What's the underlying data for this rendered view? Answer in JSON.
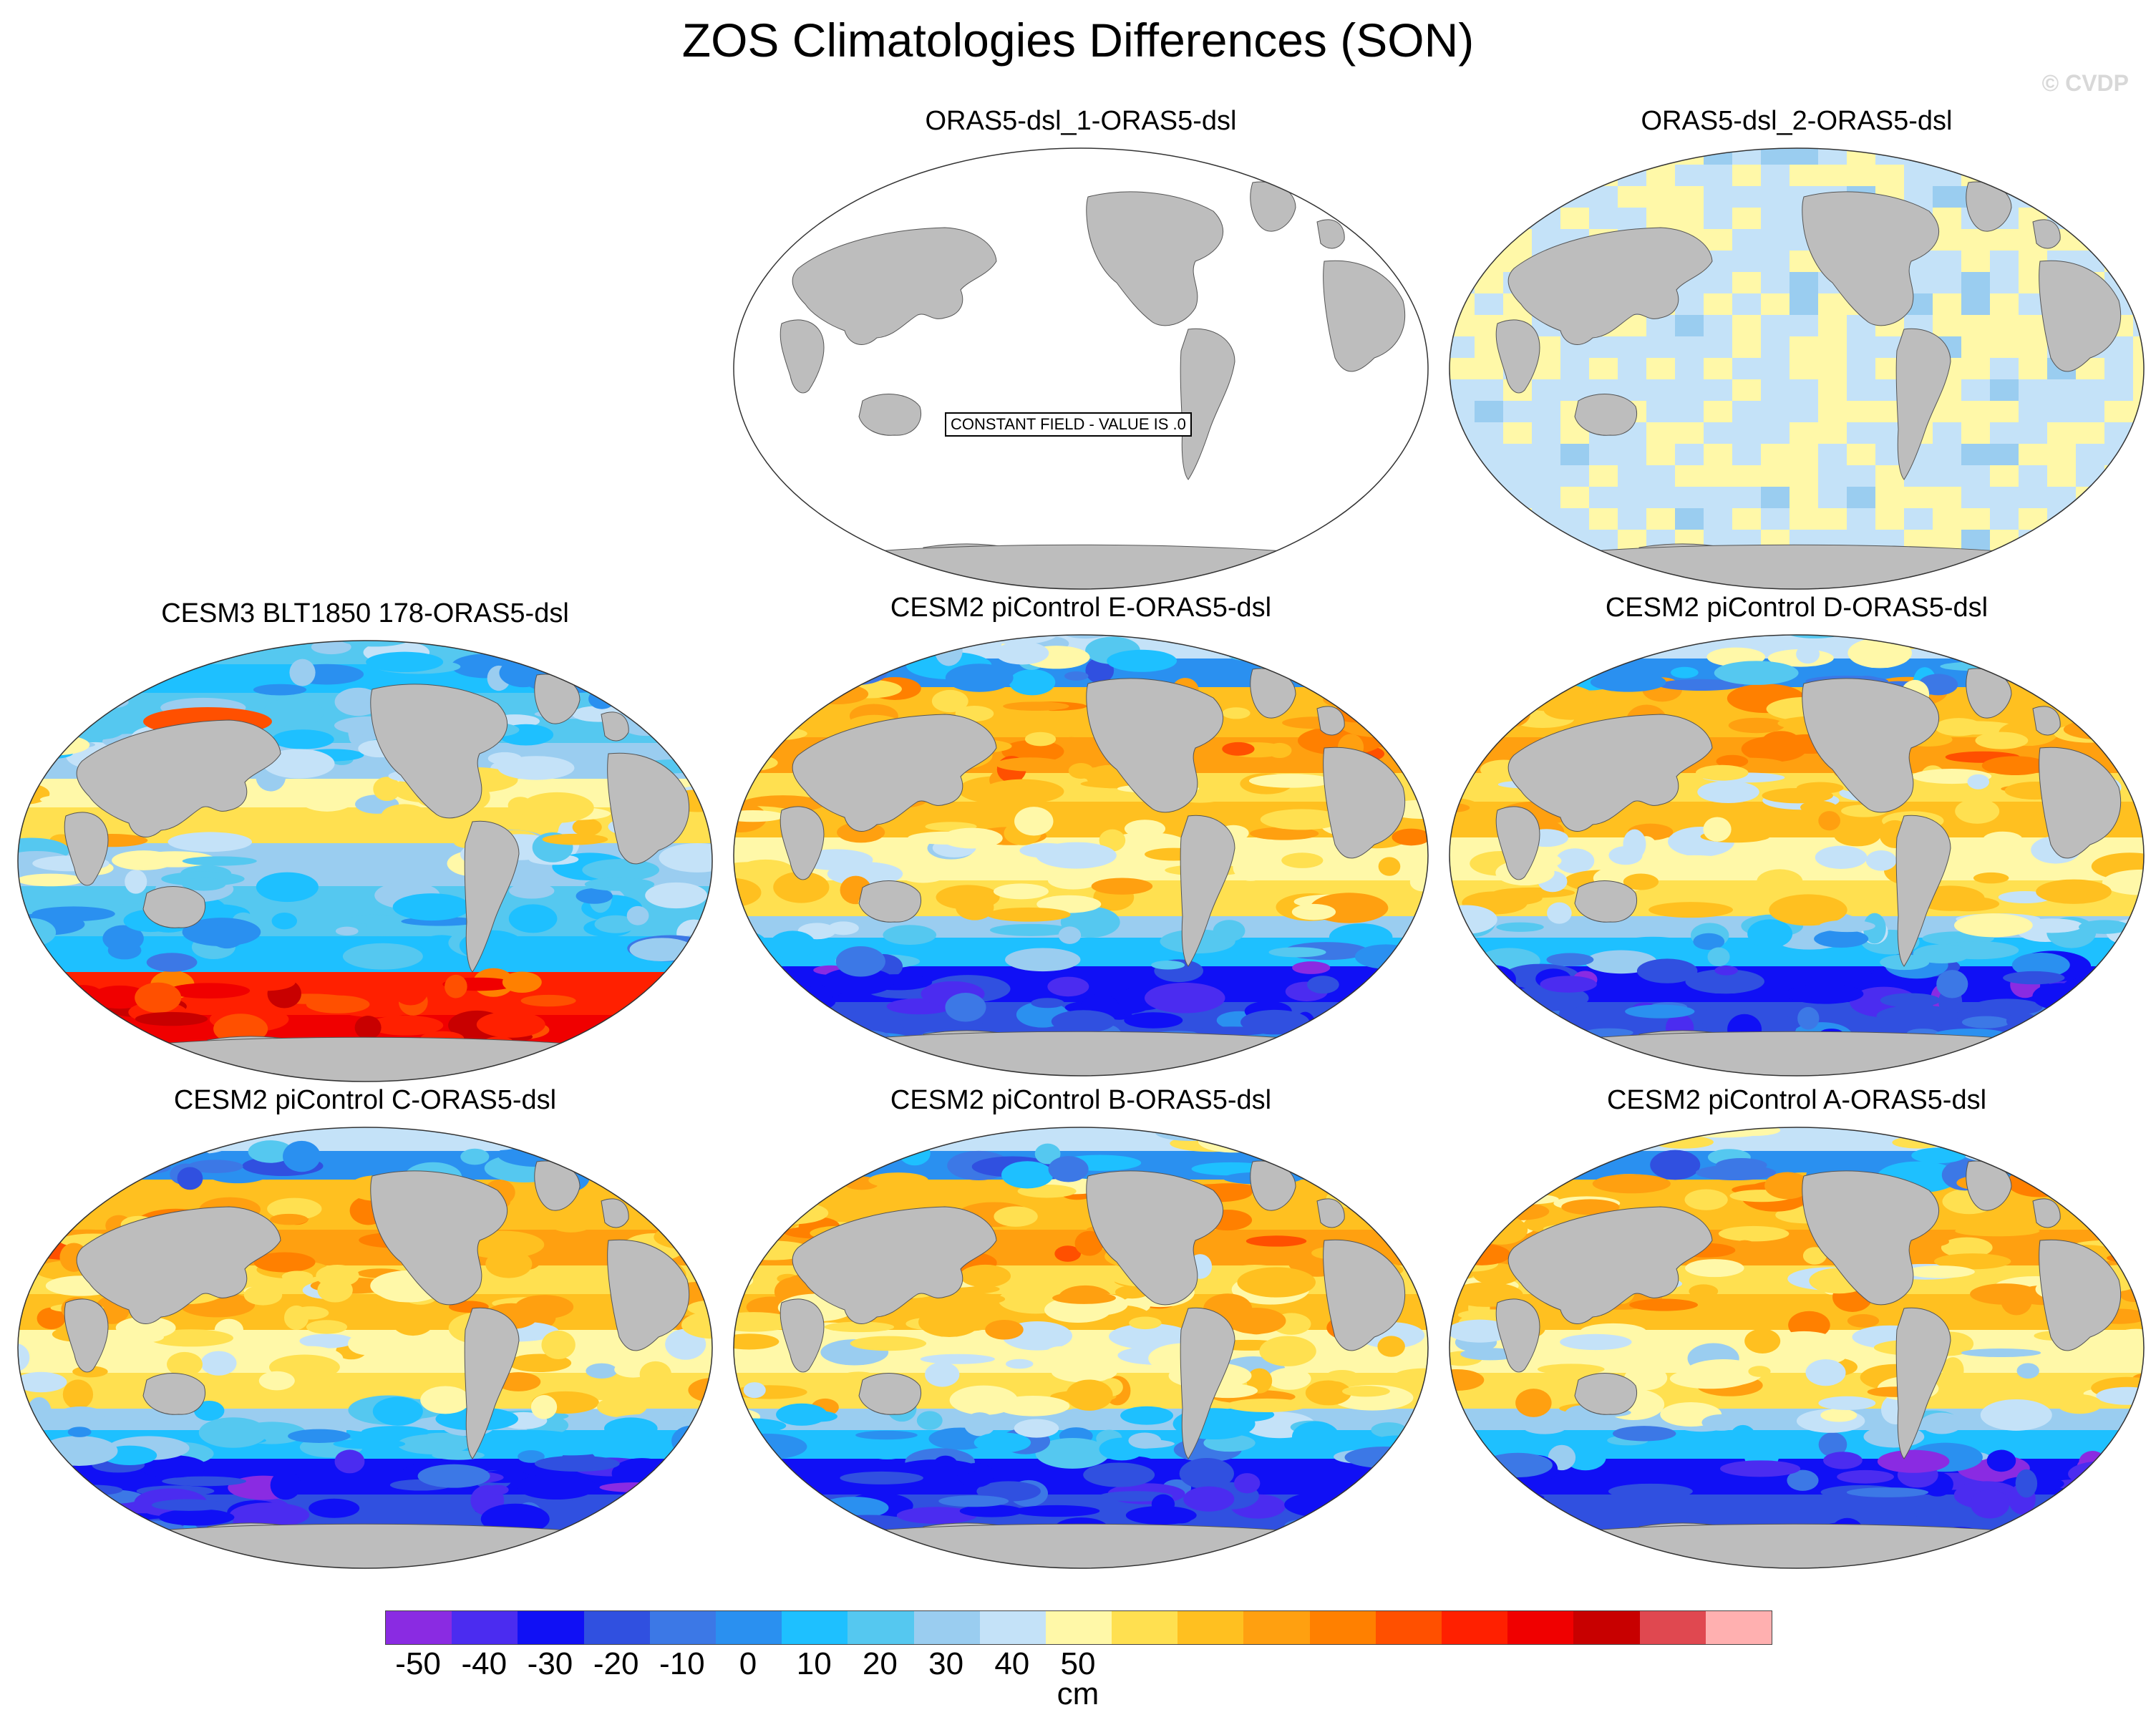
{
  "title": "ZOS Climatologies Differences (SON)",
  "watermark": "© CVDP",
  "panels": [
    {
      "title": "ORAS5-dsl_1-ORAS5-dsl",
      "pattern": "constant",
      "note": "CONSTANT FIELD - VALUE IS .0"
    },
    {
      "title": "ORAS5-dsl_2-ORAS5-dsl",
      "pattern": "weak"
    },
    {
      "title": "CESM3 BLT1850 178-ORAS5-dsl",
      "pattern": "cesm3"
    },
    {
      "title": "CESM2 piControl E-ORAS5-dsl",
      "pattern": "cesm2"
    },
    {
      "title": "CESM2 piControl D-ORAS5-dsl",
      "pattern": "cesm2"
    },
    {
      "title": "CESM2 piControl C-ORAS5-dsl",
      "pattern": "cesm2"
    },
    {
      "title": "CESM2 piControl B-ORAS5-dsl",
      "pattern": "cesm2"
    },
    {
      "title": "CESM2 piControl A-ORAS5-dsl",
      "pattern": "cesm2"
    }
  ],
  "colorbar": {
    "colors": [
      "#8a2be2",
      "#4b2cf0",
      "#1010f5",
      "#3050e0",
      "#3c78e6",
      "#2a90f0",
      "#1ec0ff",
      "#55c8f0",
      "#9acdf0",
      "#c4e2f8",
      "#fff8a8",
      "#ffe050",
      "#ffc020",
      "#ffa010",
      "#ff8000",
      "#ff5000",
      "#ff2000",
      "#f00000",
      "#c80000",
      "#e04850",
      "#ffb0b0"
    ],
    "ticks": [
      "-50",
      "-40",
      "-30",
      "-20",
      "-10",
      "0",
      "10",
      "20",
      "30",
      "40",
      "50"
    ],
    "units": "cm"
  }
}
